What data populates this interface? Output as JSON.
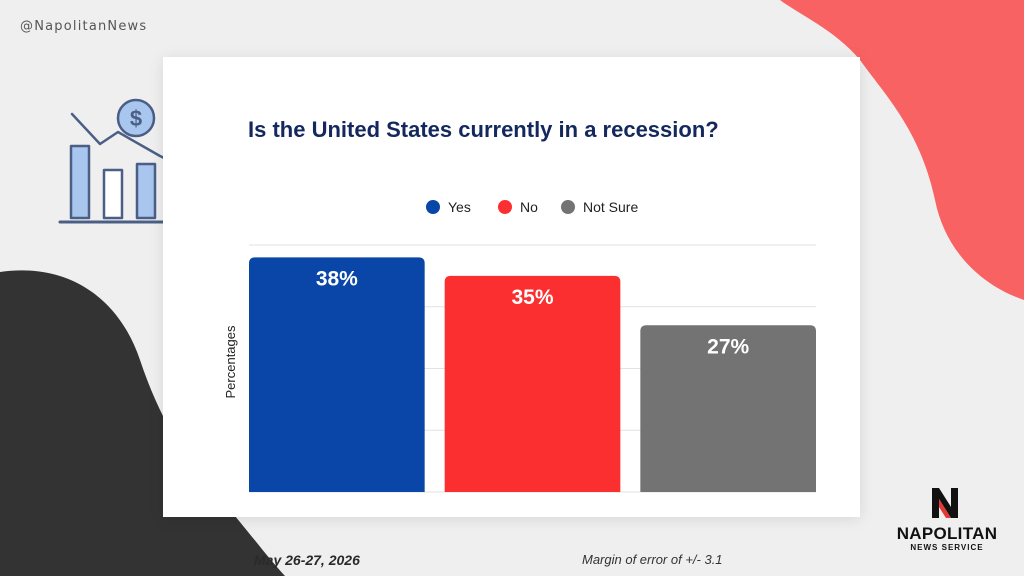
{
  "header": {
    "handle": "@NapolitanNews"
  },
  "chart_data": {
    "type": "bar",
    "title": "Is the United States currently in a recession?",
    "categories": [
      "Yes",
      "No",
      "Not Sure"
    ],
    "values": [
      38,
      35,
      27
    ],
    "value_labels": [
      "38%",
      "35%",
      "27%"
    ],
    "colors": [
      "#0a46a8",
      "#fb2f2f",
      "#737373"
    ],
    "ylabel": "Percentages",
    "xlabel": "",
    "ylim": [
      0,
      40
    ],
    "grid": true,
    "legend": {
      "placement": "top-center",
      "entries": [
        "Yes",
        "No",
        "Not Sure"
      ]
    }
  },
  "footer": {
    "date": "May 26-27, 2026",
    "margin_of_error": "Margin of error of +/- 3.1"
  },
  "brand": {
    "name": "NAPOLITAN",
    "subtitle": "NEWS SERVICE",
    "icon": "n-logo-icon"
  },
  "illustration": {
    "icon": "recession-chart-icon"
  },
  "theme": {
    "background": "#efefef",
    "accent_coral": "#f96262",
    "dark_shape": "#333333",
    "title_color": "#14285e"
  }
}
